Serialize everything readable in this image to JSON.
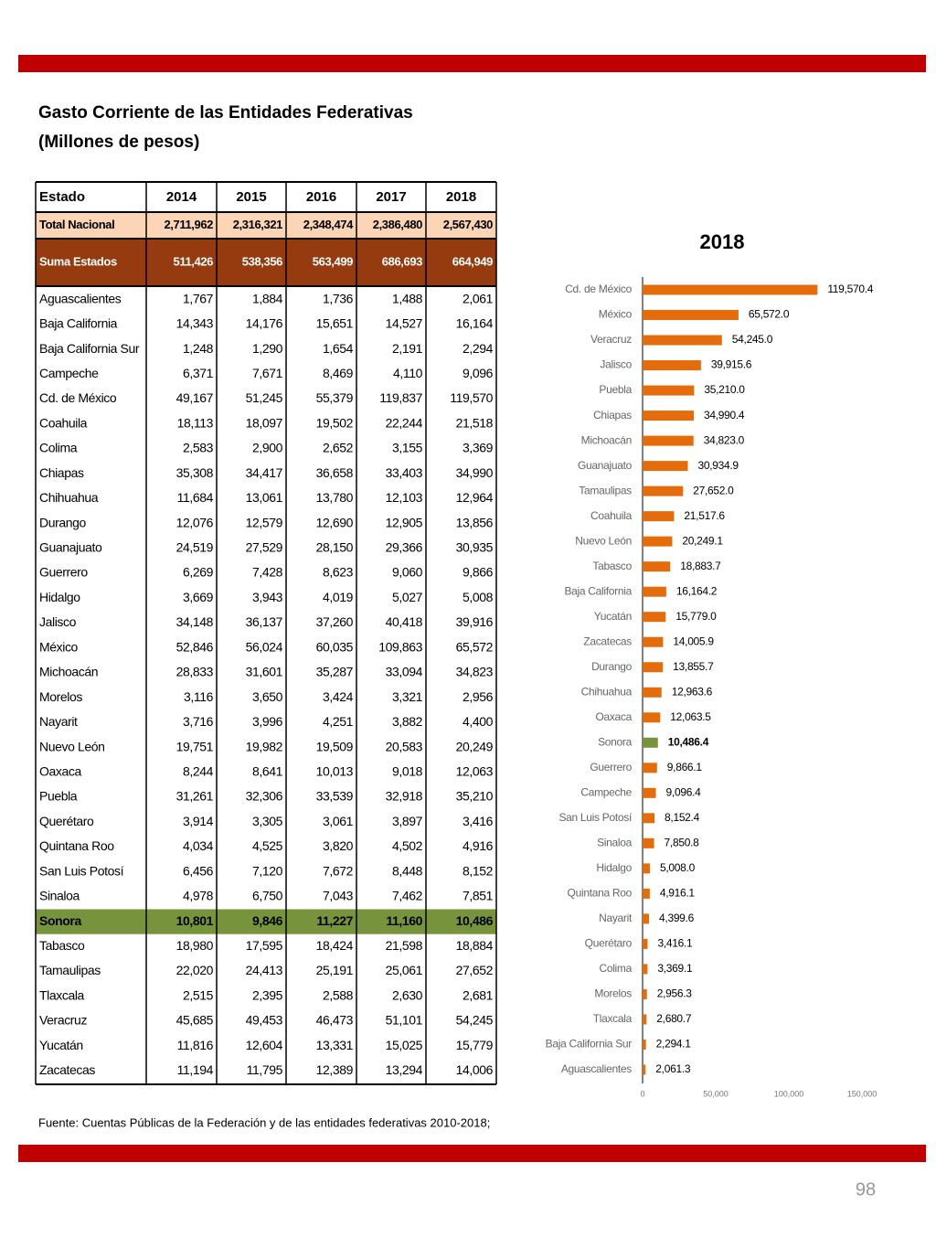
{
  "header": {
    "title": "Gasto Corriente de las Entidades Federativas",
    "subtitle": "(Millones de pesos)"
  },
  "table": {
    "columns": [
      "Estado",
      "2014",
      "2015",
      "2016",
      "2017",
      "2018"
    ],
    "total": [
      "Total Nacional",
      "2,711,962",
      "2,316,321",
      "2,348,474",
      "2,386,480",
      "2,567,430"
    ],
    "sum": [
      "Suma Estados",
      "511,426",
      "538,356",
      "563,499",
      "686,693",
      "664,949"
    ],
    "highlight_row": 25,
    "highlight_color": "#77933c",
    "rows": [
      [
        "Aguascalientes",
        "1,767",
        "1,884",
        "1,736",
        "1,488",
        "2,061"
      ],
      [
        "Baja California",
        "14,343",
        "14,176",
        "15,651",
        "14,527",
        "16,164"
      ],
      [
        "Baja California Sur",
        "1,248",
        "1,290",
        "1,654",
        "2,191",
        "2,294"
      ],
      [
        "Campeche",
        "6,371",
        "7,671",
        "8,469",
        "4,110",
        "9,096"
      ],
      [
        "Cd. de México",
        "49,167",
        "51,245",
        "55,379",
        "119,837",
        "119,570"
      ],
      [
        "Coahuila",
        "18,113",
        "18,097",
        "19,502",
        "22,244",
        "21,518"
      ],
      [
        "Colima",
        "2,583",
        "2,900",
        "2,652",
        "3,155",
        "3,369"
      ],
      [
        "Chiapas",
        "35,308",
        "34,417",
        "36,658",
        "33,403",
        "34,990"
      ],
      [
        "Chihuahua",
        "11,684",
        "13,061",
        "13,780",
        "12,103",
        "12,964"
      ],
      [
        "Durango",
        "12,076",
        "12,579",
        "12,690",
        "12,905",
        "13,856"
      ],
      [
        "Guanajuato",
        "24,519",
        "27,529",
        "28,150",
        "29,366",
        "30,935"
      ],
      [
        "Guerrero",
        "6,269",
        "7,428",
        "8,623",
        "9,060",
        "9,866"
      ],
      [
        "Hidalgo",
        "3,669",
        "3,943",
        "4,019",
        "5,027",
        "5,008"
      ],
      [
        "Jalisco",
        "34,148",
        "36,137",
        "37,260",
        "40,418",
        "39,916"
      ],
      [
        "México",
        "52,846",
        "56,024",
        "60,035",
        "109,863",
        "65,572"
      ],
      [
        "Michoacán",
        "28,833",
        "31,601",
        "35,287",
        "33,094",
        "34,823"
      ],
      [
        "Morelos",
        "3,116",
        "3,650",
        "3,424",
        "3,321",
        "2,956"
      ],
      [
        "Nayarit",
        "3,716",
        "3,996",
        "4,251",
        "3,882",
        "4,400"
      ],
      [
        "Nuevo León",
        "19,751",
        "19,982",
        "19,509",
        "20,583",
        "20,249"
      ],
      [
        "Oaxaca",
        "8,244",
        "8,641",
        "10,013",
        "9,018",
        "12,063"
      ],
      [
        "Puebla",
        "31,261",
        "32,306",
        "33,539",
        "32,918",
        "35,210"
      ],
      [
        "Querétaro",
        "3,914",
        "3,305",
        "3,061",
        "3,897",
        "3,416"
      ],
      [
        "Quintana Roo",
        "4,034",
        "4,525",
        "3,820",
        "4,502",
        "4,916"
      ],
      [
        "San Luis Potosí",
        "6,456",
        "7,120",
        "7,672",
        "8,448",
        "8,152"
      ],
      [
        "Sinaloa",
        "4,978",
        "6,750",
        "7,043",
        "7,462",
        "7,851"
      ],
      [
        "Sonora",
        "10,801",
        "9,846",
        "11,227",
        "11,160",
        "10,486"
      ],
      [
        "Tabasco",
        "18,980",
        "17,595",
        "18,424",
        "21,598",
        "18,884"
      ],
      [
        "Tamaulipas",
        "22,020",
        "24,413",
        "25,191",
        "25,061",
        "27,652"
      ],
      [
        "Tlaxcala",
        "2,515",
        "2,395",
        "2,588",
        "2,630",
        "2,681"
      ],
      [
        "Veracruz",
        "45,685",
        "49,453",
        "46,473",
        "51,101",
        "54,245"
      ],
      [
        "Yucatán",
        "11,816",
        "12,604",
        "13,331",
        "15,025",
        "15,779"
      ],
      [
        "Zacatecas",
        "11,194",
        "11,795",
        "12,389",
        "13,294",
        "14,006"
      ]
    ]
  },
  "chart_data": {
    "type": "hbar",
    "title": "2018",
    "categories": [
      "Cd. de México",
      "México",
      "Veracruz",
      "Jalisco",
      "Puebla",
      "Chiapas",
      "Michoacán",
      "Guanajuato",
      "Tamaulipas",
      "Coahuila",
      "Nuevo León",
      "Tabasco",
      "Baja California",
      "Yucatán",
      "Zacatecas",
      "Durango",
      "Chihuahua",
      "Oaxaca",
      "Sonora",
      "Guerrero",
      "Campeche",
      "San Luis Potosí",
      "Sinaloa",
      "Hidalgo",
      "Quintana Roo",
      "Nayarit",
      "Querétaro",
      "Colima",
      "Morelos",
      "Tlaxcala",
      "Baja California Sur",
      "Aguascalientes"
    ],
    "values": [
      119570.4,
      65572.0,
      54245.0,
      39915.6,
      35210.0,
      34990.4,
      34823.0,
      30934.9,
      27652.0,
      21517.6,
      20249.1,
      18883.7,
      16164.2,
      15779.0,
      14005.9,
      13855.7,
      12963.6,
      12063.5,
      10486.4,
      9866.1,
      9096.4,
      8152.4,
      7850.8,
      5008.0,
      4916.1,
      4399.6,
      3416.1,
      3369.1,
      2956.3,
      2680.7,
      2294.1,
      2061.3
    ],
    "value_labels": [
      "119,570.4",
      "65,572.0",
      "54,245.0",
      "39,915.6",
      "35,210.0",
      "34,990.4",
      "34,823.0",
      "30,934.9",
      "27,652.0",
      "21,517.6",
      "20,249.1",
      "18,883.7",
      "16,164.2",
      "15,779.0",
      "14,005.9",
      "13,855.7",
      "12,963.6",
      "12,063.5",
      "10,486.4",
      "9,866.1",
      "9,096.4",
      "8,152.4",
      "7,850.8",
      "5,008.0",
      "4,916.1",
      "4,399.6",
      "3,416.1",
      "3,369.1",
      "2,956.3",
      "2,680.7",
      "2,294.1",
      "2,061.3"
    ],
    "color": "#e46c0a",
    "highlight_index": 18,
    "highlight_color": "#77933c",
    "xlim": [
      0,
      150000
    ],
    "xticks": [
      0,
      {
        "value": 50000,
        "label": "50,000"
      },
      {
        "value": 100000,
        "label": "100,000"
      },
      {
        "value": 150000,
        "label": "150,000"
      }
    ]
  },
  "source": "Fuente: Cuentas Públicas de la Federación y de las entidades federativas 2010-2018;",
  "page_number": "98"
}
